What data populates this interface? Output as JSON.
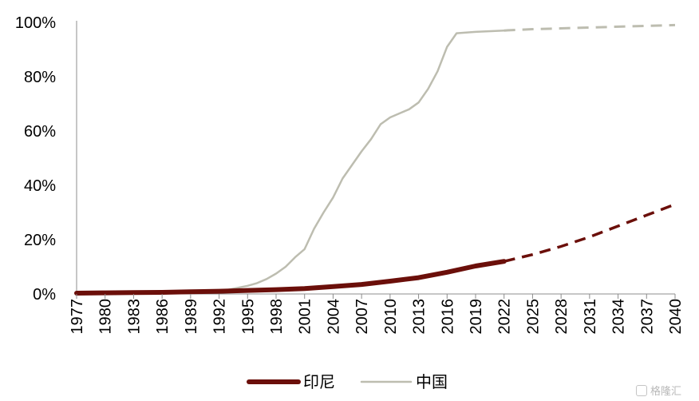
{
  "chart_data": {
    "type": "line",
    "title": "",
    "xlabel": "",
    "ylabel": "",
    "ylim": [
      0,
      100
    ],
    "y_ticks": [
      "0%",
      "20%",
      "40%",
      "60%",
      "80%",
      "100%"
    ],
    "x_ticks": [
      "1977",
      "1980",
      "1983",
      "1986",
      "1989",
      "1992",
      "1995",
      "1998",
      "2001",
      "2004",
      "2007",
      "2010",
      "2013",
      "2016",
      "2019",
      "2022",
      "2025",
      "2028",
      "2031",
      "2034",
      "2037",
      "2040"
    ],
    "grid": false,
    "legend": "bottom-center",
    "series": [
      {
        "name": "印尼",
        "color": "#6b0f0a",
        "actual": [
          [
            1977,
            0.3
          ],
          [
            1980,
            0.4
          ],
          [
            1983,
            0.5
          ],
          [
            1986,
            0.6
          ],
          [
            1989,
            0.8
          ],
          [
            1992,
            1.0
          ],
          [
            1995,
            1.3
          ],
          [
            1998,
            1.6
          ],
          [
            2001,
            2.0
          ],
          [
            2004,
            2.7
          ],
          [
            2007,
            3.5
          ],
          [
            2010,
            4.7
          ],
          [
            2013,
            6.0
          ],
          [
            2016,
            8.0
          ],
          [
            2019,
            10.3
          ],
          [
            2022,
            12.0
          ]
        ],
        "forecast": [
          [
            2022,
            12.0
          ],
          [
            2025,
            14.5
          ],
          [
            2028,
            17.5
          ],
          [
            2031,
            21.0
          ],
          [
            2034,
            25.0
          ],
          [
            2037,
            29.0
          ],
          [
            2040,
            33.0
          ]
        ]
      },
      {
        "name": "中国",
        "color": "#bdbdb0",
        "actual": [
          [
            1977,
            0.2
          ],
          [
            1980,
            0.2
          ],
          [
            1983,
            0.3
          ],
          [
            1986,
            0.4
          ],
          [
            1989,
            0.7
          ],
          [
            1992,
            1.2
          ],
          [
            1993,
            1.6
          ],
          [
            1994,
            2.3
          ],
          [
            1995,
            3.0
          ],
          [
            1996,
            4.0
          ],
          [
            1997,
            5.5
          ],
          [
            1998,
            7.5
          ],
          [
            1999,
            10.0
          ],
          [
            2000,
            13.5
          ],
          [
            2001,
            16.5
          ],
          [
            2002,
            24.0
          ],
          [
            2003,
            30.0
          ],
          [
            2004,
            35.5
          ],
          [
            2005,
            42.5
          ],
          [
            2006,
            47.5
          ],
          [
            2007,
            52.5
          ],
          [
            2008,
            57.0
          ],
          [
            2009,
            62.5
          ],
          [
            2010,
            65.0
          ],
          [
            2011,
            66.5
          ],
          [
            2012,
            68.0
          ],
          [
            2013,
            70.5
          ],
          [
            2014,
            75.5
          ],
          [
            2015,
            82.0
          ],
          [
            2016,
            91.0
          ],
          [
            2017,
            96.0
          ],
          [
            2019,
            96.5
          ],
          [
            2022,
            97.0
          ]
        ],
        "forecast": [
          [
            2022,
            97.0
          ],
          [
            2025,
            97.5
          ],
          [
            2028,
            97.8
          ],
          [
            2031,
            98.1
          ],
          [
            2034,
            98.4
          ],
          [
            2037,
            98.7
          ],
          [
            2040,
            99.0
          ]
        ]
      }
    ]
  },
  "watermark": "格隆汇"
}
